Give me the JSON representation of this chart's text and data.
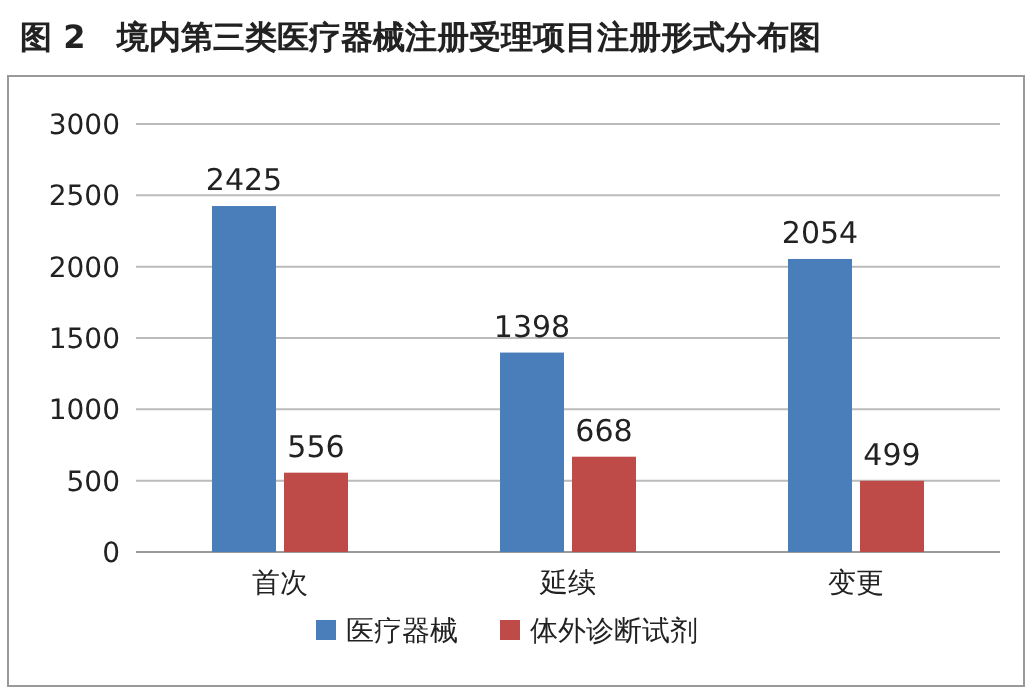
{
  "chart_data": {
    "type": "bar",
    "title": "图 2　境内第三类医疗器械注册受理项目注册形式分布图",
    "categories": [
      "首次",
      "延续",
      "变更"
    ],
    "series": [
      {
        "name": "医疗器械",
        "color": "#4a7ebb",
        "values": [
          2425,
          1398,
          2054
        ]
      },
      {
        "name": "体外诊断试剂",
        "color": "#be4b48",
        "values": [
          556,
          668,
          499
        ]
      }
    ],
    "ylim": [
      0,
      3000
    ],
    "yticks": [
      0,
      500,
      1000,
      1500,
      2000,
      2500,
      3000
    ],
    "grid": "y",
    "legend": "bottom",
    "data_labels": true
  }
}
